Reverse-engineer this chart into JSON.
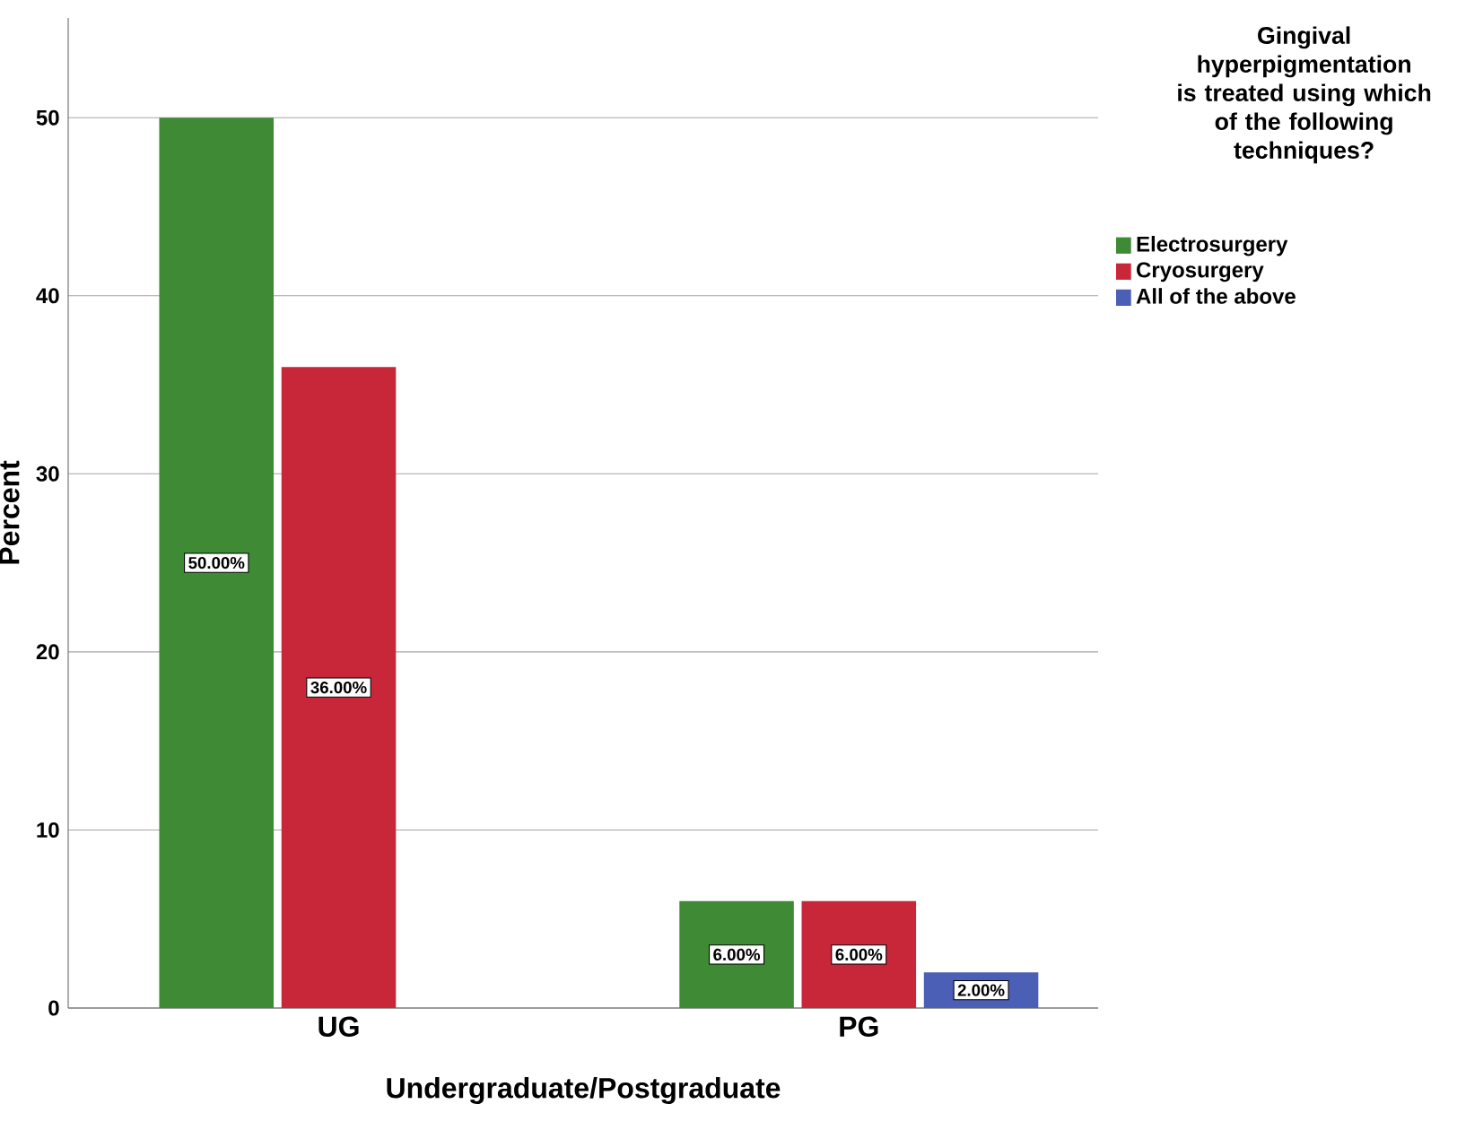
{
  "chart_data": {
    "type": "bar",
    "xlabel": "Undergraduate/Postgraduate",
    "ylabel": "Percent",
    "legend_title": "Gingival hyperpigmentation is treated using which of the following techniques?",
    "categories": [
      "UG",
      "PG"
    ],
    "series": [
      {
        "name": "Electrosurgery",
        "color": "#3e8a35",
        "values": [
          50,
          6
        ],
        "value_labels": [
          "50.00%",
          "6.00%"
        ]
      },
      {
        "name": "Cryosurgery",
        "color": "#c8273a",
        "values": [
          36,
          6
        ],
        "value_labels": [
          "36.00%",
          "6.00%"
        ]
      },
      {
        "name": "All of the above",
        "color": "#4a5fb5",
        "values": [
          null,
          2
        ],
        "value_labels": [
          null,
          "2.00%"
        ]
      }
    ],
    "ylim": [
      0,
      55.6
    ],
    "yticks": [
      0,
      10,
      20,
      30,
      40,
      50
    ],
    "grid": "y",
    "legend": "right"
  }
}
